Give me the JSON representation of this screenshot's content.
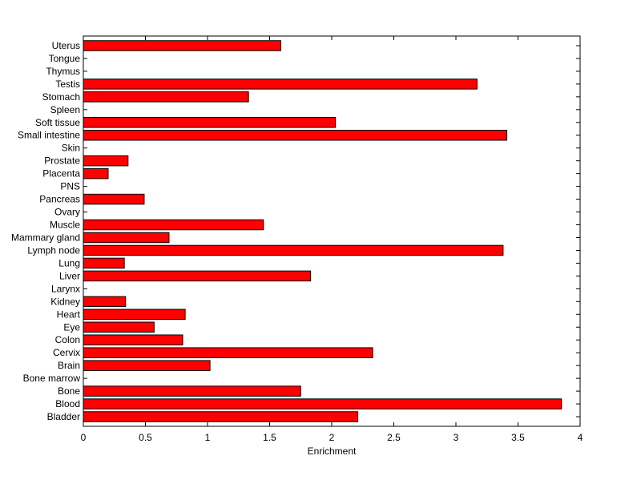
{
  "chart_data": {
    "type": "bar",
    "orientation": "horizontal",
    "title": "",
    "xlabel": "Enrichment",
    "ylabel": "",
    "xlim": [
      0,
      4
    ],
    "xticks": [
      "0",
      "0.5",
      "1",
      "1.5",
      "2",
      "2.5",
      "3",
      "3.5",
      "4"
    ],
    "grid": false,
    "bar_color": "#ff0000",
    "bar_edge_color": "#000000",
    "categories": [
      "Bladder",
      "Blood",
      "Bone",
      "Bone marrow",
      "Brain",
      "Cervix",
      "Colon",
      "Eye",
      "Heart",
      "Kidney",
      "Larynx",
      "Liver",
      "Lung",
      "Lymph node",
      "Mammary gland",
      "Muscle",
      "Ovary",
      "Pancreas",
      "PNS",
      "Placenta",
      "Prostate",
      "Skin",
      "Small intestine",
      "Soft tissue",
      "Spleen",
      "Stomach",
      "Testis",
      "Thymus",
      "Tongue",
      "Uterus"
    ],
    "values": [
      2.21,
      3.85,
      1.75,
      0,
      1.02,
      2.33,
      0.8,
      0.57,
      0.82,
      0.34,
      0,
      1.83,
      0.33,
      3.38,
      0.69,
      1.45,
      0,
      0.49,
      0,
      0.2,
      0.36,
      0,
      3.41,
      2.03,
      0,
      1.33,
      3.17,
      0,
      0,
      1.59
    ]
  }
}
